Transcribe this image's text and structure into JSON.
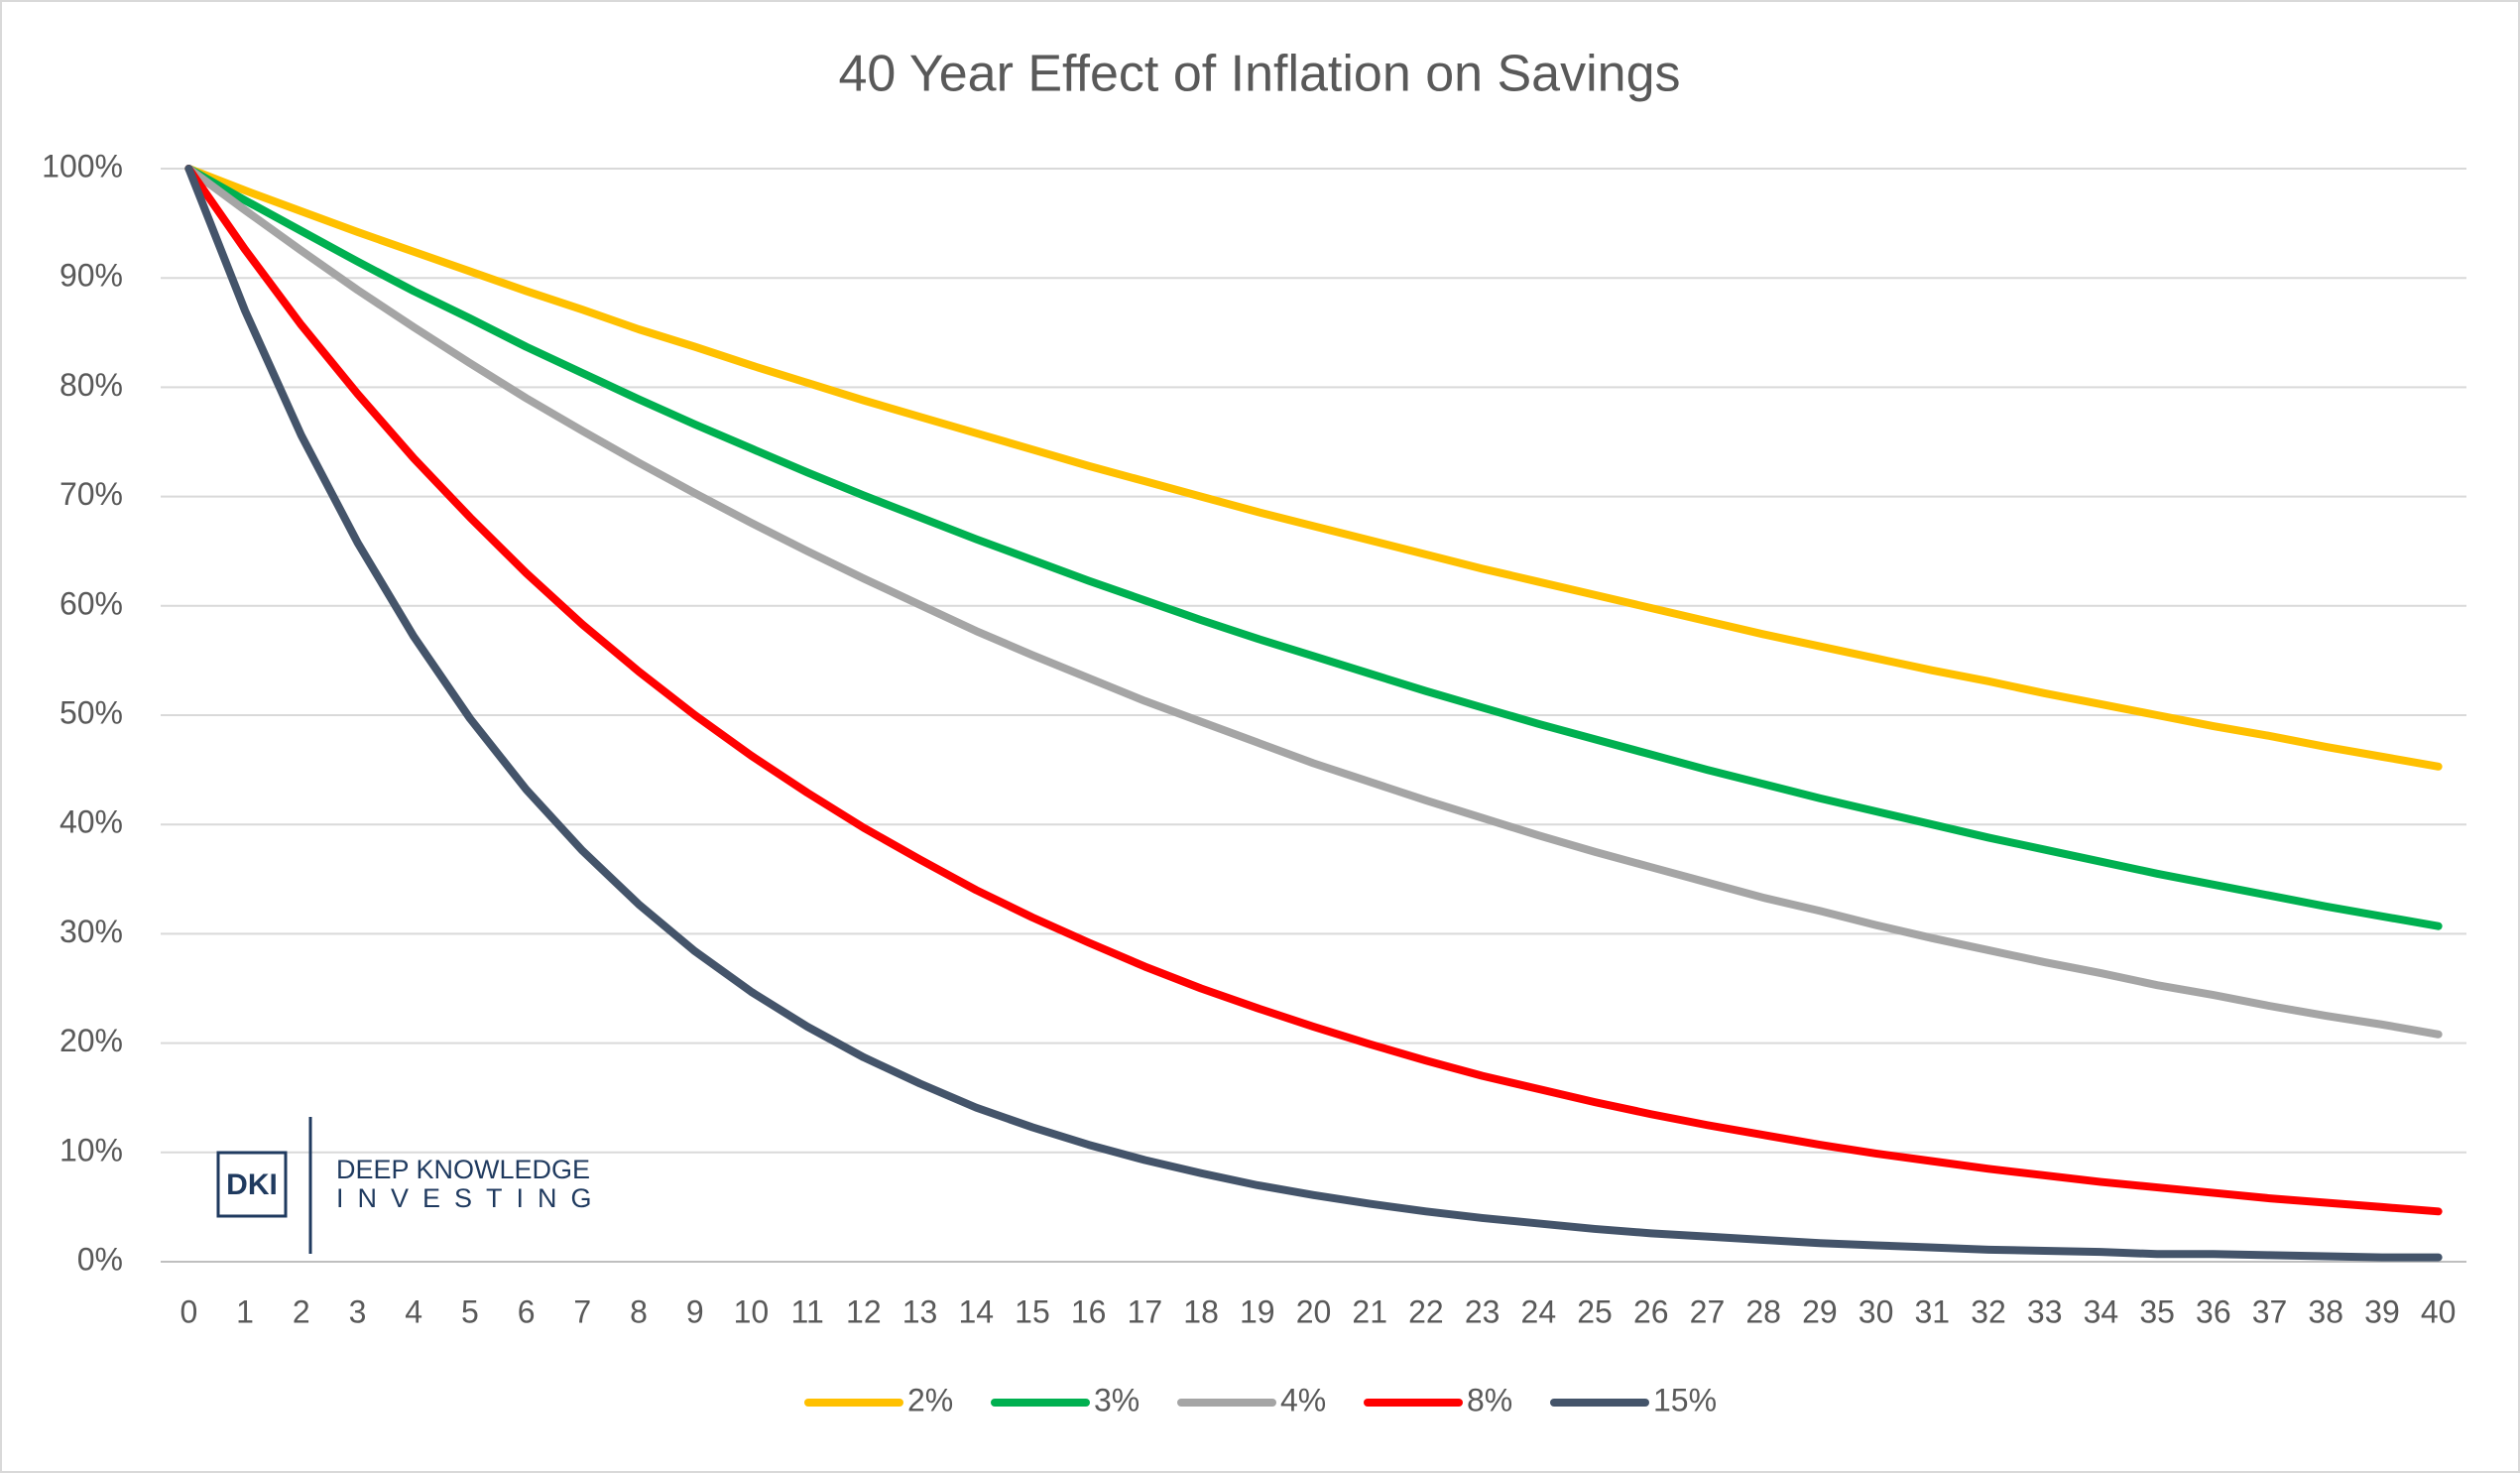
{
  "chart_data": {
    "type": "line",
    "title": "40 Year Effect of Inflation on Savings",
    "categories": [
      "0",
      "1",
      "2",
      "3",
      "4",
      "5",
      "6",
      "7",
      "8",
      "9",
      "10",
      "11",
      "12",
      "13",
      "14",
      "15",
      "16",
      "17",
      "18",
      "19",
      "20",
      "21",
      "22",
      "23",
      "24",
      "25",
      "26",
      "27",
      "28",
      "29",
      "30",
      "31",
      "32",
      "33",
      "34",
      "35",
      "36",
      "37",
      "38",
      "39",
      "40"
    ],
    "series": [
      {
        "name": "2%",
        "color": "#FFC000",
        "values": [
          100,
          98.0,
          96.1,
          94.2,
          92.4,
          90.6,
          88.8,
          87.1,
          85.3,
          83.7,
          82.0,
          80.4,
          78.8,
          77.3,
          75.8,
          74.3,
          72.8,
          71.4,
          70.0,
          68.6,
          67.3,
          66.0,
          64.7,
          63.4,
          62.2,
          61.0,
          59.8,
          58.6,
          57.4,
          56.3,
          55.2,
          54.1,
          53.1,
          52.0,
          51.0,
          50.0,
          49.0,
          48.1,
          47.1,
          46.2,
          45.3
        ]
      },
      {
        "name": "3%",
        "color": "#00B050",
        "values": [
          100,
          97.1,
          94.3,
          91.5,
          88.8,
          86.3,
          83.7,
          81.3,
          78.9,
          76.6,
          74.4,
          72.2,
          70.1,
          68.1,
          66.1,
          64.2,
          62.3,
          60.5,
          58.7,
          57.0,
          55.4,
          53.8,
          52.2,
          50.7,
          49.2,
          47.8,
          46.4,
          45.0,
          43.7,
          42.4,
          41.2,
          40.0,
          38.8,
          37.7,
          36.6,
          35.5,
          34.5,
          33.5,
          32.5,
          31.6,
          30.7
        ]
      },
      {
        "name": "4%",
        "color": "#A5A5A5",
        "values": [
          100,
          96.2,
          92.5,
          88.9,
          85.5,
          82.2,
          79.0,
          76.0,
          73.1,
          70.3,
          67.6,
          65.0,
          62.5,
          60.1,
          57.7,
          55.5,
          53.4,
          51.3,
          49.4,
          47.5,
          45.6,
          43.9,
          42.2,
          40.6,
          39.0,
          37.5,
          36.1,
          34.7,
          33.3,
          32.1,
          30.8,
          29.6,
          28.5,
          27.4,
          26.4,
          25.3,
          24.4,
          23.4,
          22.5,
          21.7,
          20.8
        ]
      },
      {
        "name": "8%",
        "color": "#FF0000",
        "values": [
          100,
          92.6,
          85.7,
          79.4,
          73.5,
          68.1,
          63.0,
          58.3,
          54.0,
          50.0,
          46.3,
          42.9,
          39.7,
          36.8,
          34.0,
          31.5,
          29.2,
          27.0,
          25.0,
          23.2,
          21.5,
          19.9,
          18.4,
          17.0,
          15.8,
          14.6,
          13.5,
          12.5,
          11.6,
          10.7,
          9.9,
          9.2,
          8.5,
          7.9,
          7.3,
          6.8,
          6.3,
          5.8,
          5.4,
          5.0,
          4.6
        ]
      },
      {
        "name": "15%",
        "color": "#44546A",
        "values": [
          100,
          87.0,
          75.6,
          65.8,
          57.2,
          49.7,
          43.2,
          37.6,
          32.7,
          28.4,
          24.7,
          21.5,
          18.7,
          16.3,
          14.1,
          12.3,
          10.7,
          9.3,
          8.1,
          7.0,
          6.1,
          5.3,
          4.6,
          4.0,
          3.5,
          3.0,
          2.6,
          2.3,
          2.0,
          1.7,
          1.5,
          1.3,
          1.1,
          1.0,
          0.9,
          0.7,
          0.7,
          0.6,
          0.5,
          0.4,
          0.4
        ]
      }
    ],
    "ylim": [
      0,
      100
    ],
    "yticks": [
      {
        "value": 0,
        "label": "0%"
      },
      {
        "value": 10,
        "label": "10%"
      },
      {
        "value": 20,
        "label": "20%"
      },
      {
        "value": 30,
        "label": "30%"
      },
      {
        "value": 40,
        "label": "40%"
      },
      {
        "value": 50,
        "label": "50%"
      },
      {
        "value": 60,
        "label": "60%"
      },
      {
        "value": 70,
        "label": "70%"
      },
      {
        "value": 80,
        "label": "80%"
      },
      {
        "value": 90,
        "label": "90%"
      },
      {
        "value": 100,
        "label": "100%"
      }
    ],
    "grid": true,
    "legend": "bottom"
  },
  "logo": {
    "mark": "DKI",
    "line1": "DEEP KNOWLEDGE",
    "line2": "INVESTING"
  }
}
